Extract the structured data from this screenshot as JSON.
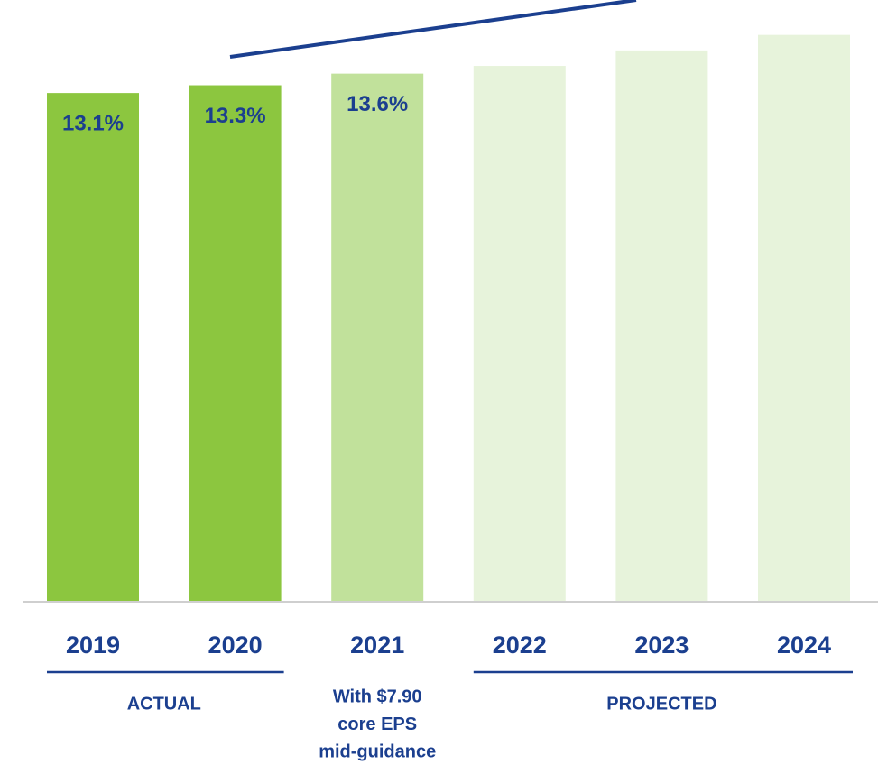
{
  "chart_data": {
    "type": "bar",
    "categories": [
      "2019",
      "2020",
      "2021",
      "2022",
      "2023",
      "2024"
    ],
    "values": [
      13.1,
      13.3,
      13.6,
      13.8,
      14.2,
      14.6
    ],
    "value_labels": [
      "13.1%",
      "13.3%",
      "13.6%",
      null,
      null,
      null
    ],
    "colors": [
      "#8cc63f",
      "#8cc63f",
      "#c1e19b",
      "#e7f3db",
      "#e7f3db",
      "#e7f3db"
    ],
    "ylim": [
      0,
      15.5
    ],
    "groups": [
      {
        "label": [
          "ACTUAL"
        ],
        "categories": [
          0,
          1
        ],
        "underline": true
      },
      {
        "label": [
          "With $7.90",
          "core EPS",
          "mid-guidance"
        ],
        "categories": [
          2
        ],
        "underline": false
      },
      {
        "label": [
          "PROJECTED"
        ],
        "categories": [
          3,
          5
        ],
        "underline": true
      }
    ]
  }
}
